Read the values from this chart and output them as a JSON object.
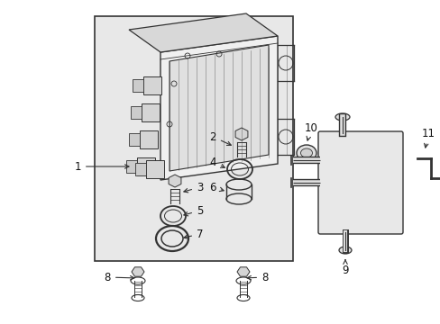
{
  "background_color": "#ffffff",
  "box_bg": "#e8e8e8",
  "line_color": "#333333",
  "label_color": "#111111",
  "figsize": [
    4.89,
    3.6
  ],
  "dpi": 100
}
